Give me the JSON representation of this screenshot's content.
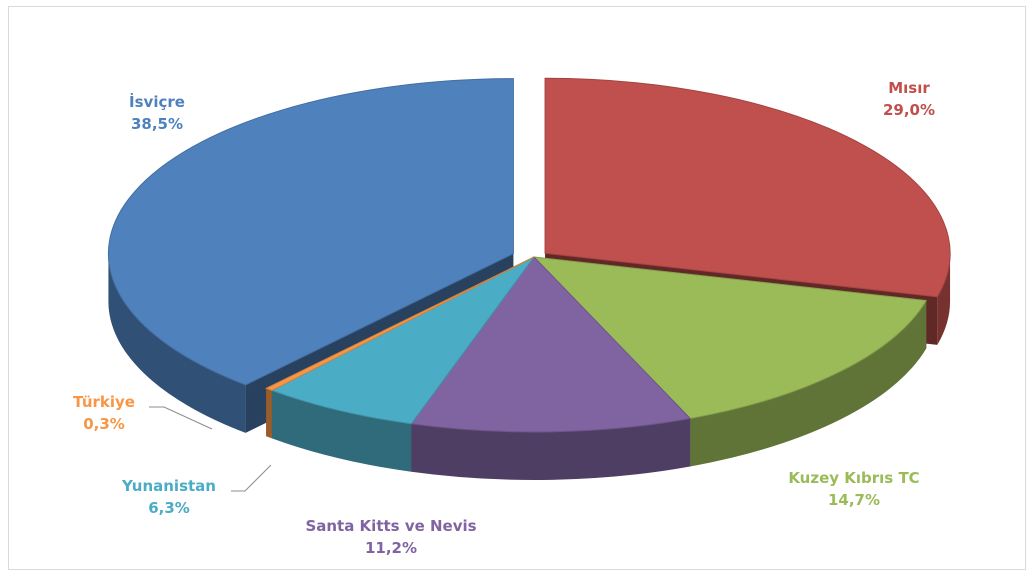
{
  "chart_data": {
    "type": "pie",
    "title": "",
    "legend": "none",
    "slices": [
      {
        "label": "Mısır",
        "value": 29.0,
        "value_label": "29,0%",
        "color": "#c0504d"
      },
      {
        "label": "Kuzey Kıbrıs TC",
        "value": 14.7,
        "value_label": "14,7%",
        "color": "#9bbb59"
      },
      {
        "label": "Santa Kitts ve Nevis",
        "value": 11.2,
        "value_label": "11,2%",
        "color": "#8064a2"
      },
      {
        "label": "Yunanistan",
        "value": 6.3,
        "value_label": "6,3%",
        "color": "#4bacc6"
      },
      {
        "label": "Türkiye",
        "value": 0.3,
        "value_label": "0,3%",
        "color": "#f79646"
      },
      {
        "label": "İsviçre",
        "value": 38.5,
        "value_label": "38,5%",
        "color": "#4f81bd"
      }
    ]
  }
}
